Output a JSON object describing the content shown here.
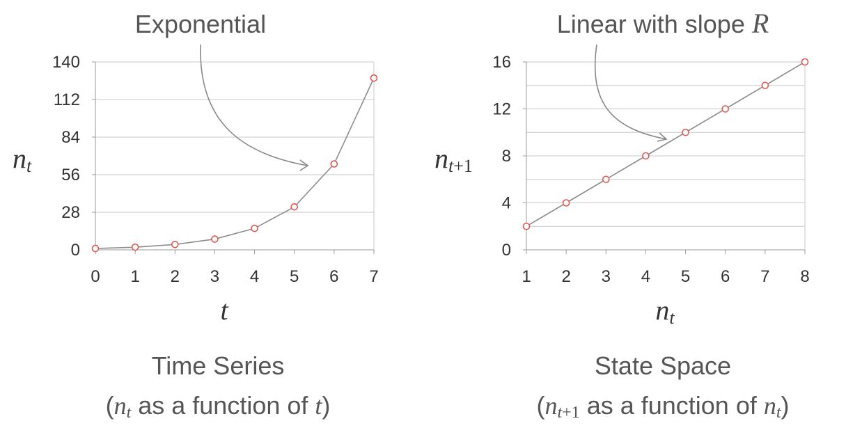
{
  "chart_data": [
    {
      "type": "line",
      "annotation": "Exponential",
      "y_var": "n",
      "y_sub": "t",
      "x_var": "t",
      "caption": {
        "line1": "Time Series",
        "open": "(",
        "var1": "n",
        "var1_sub": "t",
        "mid": " as a function of ",
        "var2": "t",
        "close": ")"
      },
      "x": [
        0,
        1,
        2,
        3,
        4,
        5,
        6,
        7
      ],
      "y": [
        1,
        2,
        4,
        8,
        16,
        32,
        64,
        128
      ],
      "xlim": [
        0,
        7
      ],
      "ylim": [
        0,
        140
      ],
      "x_ticks": [
        "0",
        "1",
        "2",
        "3",
        "4",
        "5",
        "6",
        "7"
      ],
      "y_ticks": [
        "0",
        "28",
        "56",
        "84",
        "112",
        "140"
      ],
      "grid": "horizontal",
      "marker_color": "#e05a52",
      "line_color": "#8c8c8c"
    },
    {
      "type": "line",
      "annotation": "Linear with slope ",
      "annotation_var": "R",
      "y_var": "n",
      "y_sub": "t",
      "y_sub_extra": "+1",
      "x_var": "n",
      "x_sub": "t",
      "caption": {
        "line1": "State Space",
        "open": "(",
        "var1": "n",
        "var1_sub": "t",
        "var1_sub_extra": "+1",
        "mid": " as a function of ",
        "var2": "n",
        "var2_sub": "t",
        "close": ")"
      },
      "x": [
        1,
        2,
        3,
        4,
        5,
        6,
        7,
        8
      ],
      "y": [
        2,
        4,
        6,
        8,
        10,
        12,
        14,
        16
      ],
      "xlim": [
        1,
        8
      ],
      "ylim": [
        0,
        16
      ],
      "x_ticks": [
        "1",
        "2",
        "3",
        "4",
        "5",
        "6",
        "7",
        "8"
      ],
      "y_ticks": [
        "0",
        "4",
        "8",
        "12",
        "16"
      ],
      "minor_grid_y": [
        2,
        6,
        10,
        14
      ],
      "grid": "horizontal",
      "marker_color": "#e05a52",
      "line_color": "#8c8c8c"
    }
  ]
}
